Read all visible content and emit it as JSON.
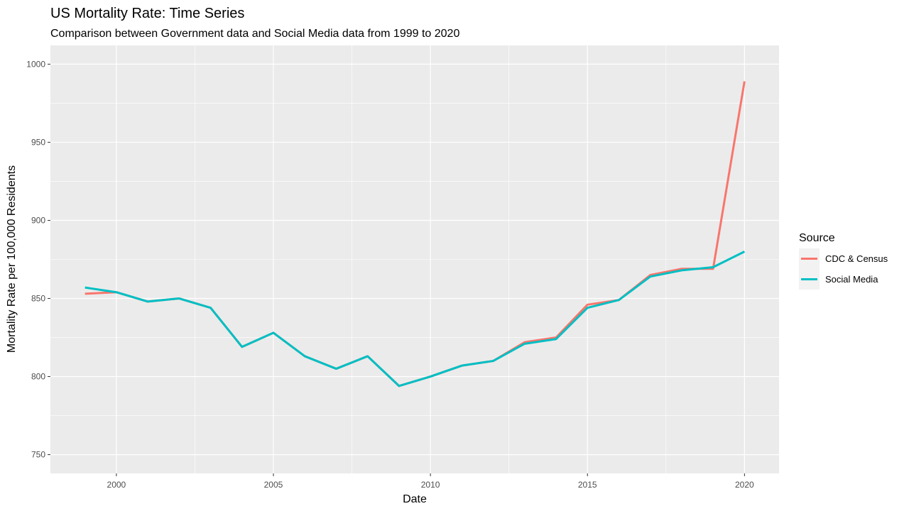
{
  "chart_data": {
    "type": "line",
    "title": "US Mortality Rate: Time Series",
    "subtitle": "Comparison between Government data and Social Media data from 1999 to 2020",
    "xlabel": "Date",
    "ylabel": "Mortality Rate per 100,000 Residents",
    "xlim": [
      1997.9,
      2021.1
    ],
    "ylim": [
      738,
      1012
    ],
    "x_ticks": [
      2000,
      2005,
      2010,
      2015,
      2020
    ],
    "y_ticks": [
      750,
      800,
      850,
      900,
      950,
      1000
    ],
    "x_ticks_minor": [
      2002.5,
      2007.5,
      2012.5,
      2017.5
    ],
    "y_ticks_minor": [
      775,
      825,
      875,
      925,
      975
    ],
    "grid": true,
    "legend": {
      "title": "Source",
      "placement": "right"
    },
    "x": [
      1999,
      2000,
      2001,
      2002,
      2003,
      2004,
      2005,
      2006,
      2007,
      2008,
      2009,
      2010,
      2011,
      2012,
      2013,
      2014,
      2015,
      2016,
      2017,
      2018,
      2019,
      2020
    ],
    "series": [
      {
        "name": "CDC & Census",
        "color": "#F8766D",
        "values": [
          853,
          854,
          848,
          850,
          844,
          819,
          828,
          813,
          805,
          813,
          794,
          800,
          807,
          810,
          822,
          825,
          846,
          849,
          865,
          869,
          869,
          989
        ]
      },
      {
        "name": "Social Media",
        "color": "#00BFC4",
        "values": [
          857,
          854,
          848,
          850,
          844,
          819,
          828,
          813,
          805,
          813,
          794,
          800,
          807,
          810,
          821,
          824,
          844,
          849,
          864,
          868,
          870,
          880
        ]
      }
    ]
  }
}
